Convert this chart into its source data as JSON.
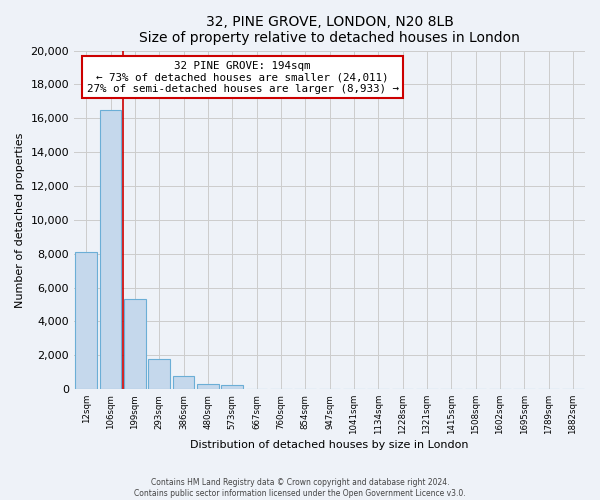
{
  "title": "32, PINE GROVE, LONDON, N20 8LB",
  "subtitle": "Size of property relative to detached houses in London",
  "xlabel": "Distribution of detached houses by size in London",
  "ylabel": "Number of detached properties",
  "bar_labels": [
    "12sqm",
    "106sqm",
    "199sqm",
    "293sqm",
    "386sqm",
    "480sqm",
    "573sqm",
    "667sqm",
    "760sqm",
    "854sqm",
    "947sqm",
    "1041sqm",
    "1134sqm",
    "1228sqm",
    "1321sqm",
    "1415sqm",
    "1508sqm",
    "1602sqm",
    "1695sqm",
    "1789sqm",
    "1882sqm"
  ],
  "bar_values": [
    8100,
    16500,
    5300,
    1800,
    800,
    300,
    250,
    0,
    0,
    0,
    0,
    0,
    0,
    0,
    0,
    0,
    0,
    0,
    0,
    0,
    0
  ],
  "bar_color": "#c5d8ec",
  "bar_edge_color": "#6baed6",
  "property_line_color": "#cc0000",
  "annotation_title": "32 PINE GROVE: 194sqm",
  "annotation_line1": "← 73% of detached houses are smaller (24,011)",
  "annotation_line2": "27% of semi-detached houses are larger (8,933) →",
  "annotation_box_color": "#ffffff",
  "annotation_box_edge": "#cc0000",
  "ylim": [
    0,
    20000
  ],
  "yticks": [
    0,
    2000,
    4000,
    6000,
    8000,
    10000,
    12000,
    14000,
    16000,
    18000,
    20000
  ],
  "grid_color": "#cccccc",
  "background_color": "#eef2f8",
  "plot_bg_color": "#eef2f8",
  "footer_line1": "Contains HM Land Registry data © Crown copyright and database right 2024.",
  "footer_line2": "Contains public sector information licensed under the Open Government Licence v3.0."
}
